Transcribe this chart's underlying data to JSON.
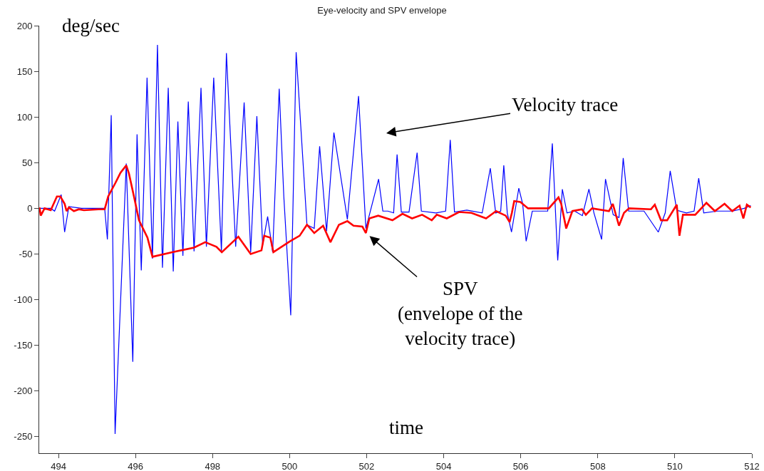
{
  "chart_data": {
    "type": "line",
    "title": "Eye-velocity and SPV envelope",
    "xlabel": "time",
    "ylabel": "deg/sec",
    "xlim": [
      493.5,
      512
    ],
    "xticks": [
      494,
      496,
      498,
      500,
      502,
      504,
      506,
      508,
      510,
      512
    ],
    "ylim": [
      -268,
      200
    ],
    "yticks": [
      -250,
      -200,
      -150,
      -100,
      -50,
      0,
      50,
      100,
      150,
      200
    ],
    "marker": "none",
    "line_style": "solid",
    "annotations": [
      "Velocity trace",
      "SPV\n(envelope of the\nvelocity trace)"
    ],
    "series": [
      {
        "color": "#0000ff",
        "x": [
          493.51,
          493.8,
          493.9,
          494.07,
          494.16,
          494.27,
          494.6,
          495.2,
          495.27,
          495.37,
          495.47,
          495.76,
          495.93,
          496.04,
          496.15,
          496.3,
          496.44,
          496.57,
          496.7,
          496.85,
          496.98,
          497.1,
          497.23,
          497.37,
          497.52,
          497.7,
          497.84,
          498.03,
          498.23,
          498.36,
          498.6,
          498.82,
          498.99,
          499.15,
          499.3,
          499.43,
          499.56,
          499.73,
          499.85,
          500.03,
          500.17,
          500.45,
          500.64,
          500.78,
          500.96,
          501.15,
          501.5,
          501.79,
          501.98,
          502.31,
          502.42,
          502.55,
          502.7,
          502.79,
          502.9,
          503.1,
          503.31,
          503.42,
          503.8,
          504.05,
          504.17,
          504.28,
          504.6,
          505.0,
          505.21,
          505.35,
          505.48,
          505.56,
          505.65,
          505.76,
          505.95,
          506.05,
          506.14,
          506.3,
          506.7,
          506.82,
          506.96,
          507.08,
          507.2,
          507.4,
          507.6,
          507.77,
          507.9,
          508.1,
          508.2,
          508.4,
          508.55,
          508.66,
          508.8,
          509.2,
          509.57,
          509.75,
          509.88,
          510.05,
          510.3,
          510.5,
          510.62,
          510.75,
          511.1,
          511.5,
          511.8,
          511.97
        ],
        "values": [
          0,
          0,
          -3,
          15,
          -26,
          2,
          0,
          0,
          -34,
          102,
          -247,
          49,
          -168,
          81,
          -68,
          143,
          -55,
          179,
          -65,
          132,
          -69,
          95,
          -52,
          117,
          -47,
          132,
          -42,
          143,
          -47,
          170,
          -42,
          116,
          -48,
          101,
          -40,
          -9,
          -48,
          131,
          13,
          -117,
          171,
          -18,
          -22,
          68,
          -25,
          83,
          -12,
          123,
          -22,
          32,
          -3,
          -3,
          -5,
          59,
          -4,
          -4,
          61,
          -3,
          -5,
          -3,
          75,
          -4,
          -2,
          -5,
          44,
          -5,
          -3,
          47,
          -5,
          -26,
          22,
          5,
          -36,
          -3,
          -3,
          71,
          -57,
          21,
          -5,
          -3,
          -8,
          21,
          -5,
          -34,
          32,
          -7,
          -10,
          55,
          -3,
          -3,
          -26,
          -5,
          41,
          -2,
          -5,
          -3,
          33,
          -5,
          -3,
          -3,
          0,
          3
        ]
      },
      {
        "color": "#ff0000",
        "x": [
          493.51,
          493.54,
          493.64,
          493.8,
          493.96,
          494.05,
          494.16,
          494.21,
          494.27,
          494.4,
          494.53,
          494.66,
          495.04,
          495.2,
          495.29,
          495.48,
          495.61,
          495.76,
          495.83,
          495.96,
          496.09,
          496.31,
          496.44,
          496.95,
          497.52,
          497.81,
          498.1,
          498.24,
          498.67,
          498.99,
          499.27,
          499.34,
          499.5,
          499.58,
          500.01,
          500.26,
          500.45,
          500.64,
          500.87,
          501.06,
          501.28,
          501.5,
          501.66,
          501.89,
          501.98,
          502.07,
          502.3,
          502.67,
          502.93,
          503.18,
          503.44,
          503.69,
          503.82,
          504.08,
          504.4,
          504.72,
          505.1,
          505.36,
          505.61,
          505.71,
          505.77,
          505.83,
          505.99,
          506.19,
          506.73,
          506.98,
          507.05,
          507.18,
          507.34,
          507.59,
          507.69,
          507.85,
          508.29,
          508.39,
          508.55,
          508.68,
          508.81,
          509.38,
          509.48,
          509.64,
          509.8,
          510.05,
          510.12,
          510.21,
          510.53,
          510.82,
          511.04,
          511.29,
          511.49,
          511.68,
          511.78,
          511.87,
          511.97
        ],
        "values": [
          1,
          -8,
          0,
          -2,
          13,
          13,
          5,
          -3,
          1,
          -3,
          -1,
          -2,
          -1,
          -1,
          13,
          28,
          39,
          47,
          38,
          13,
          -13,
          -32,
          -53,
          -48,
          -43,
          -37,
          -42,
          -48,
          -31,
          -50,
          -46,
          -30,
          -32,
          -48,
          -36,
          -30,
          -18,
          -27,
          -19,
          -37,
          -18,
          -14,
          -19,
          -20,
          -27,
          -11,
          -8,
          -13,
          -6,
          -11,
          -7,
          -13,
          -7,
          -11,
          -4,
          -5,
          -11,
          -3,
          -8,
          -15,
          -5,
          8,
          7,
          0,
          0,
          12,
          5,
          -22,
          -3,
          -1,
          -7,
          0,
          -3,
          5,
          -19,
          -5,
          0,
          -1,
          4,
          -13,
          -13,
          4,
          -30,
          -7,
          -7,
          6,
          -3,
          5,
          -3,
          3,
          -11,
          4,
          1
        ]
      }
    ]
  }
}
